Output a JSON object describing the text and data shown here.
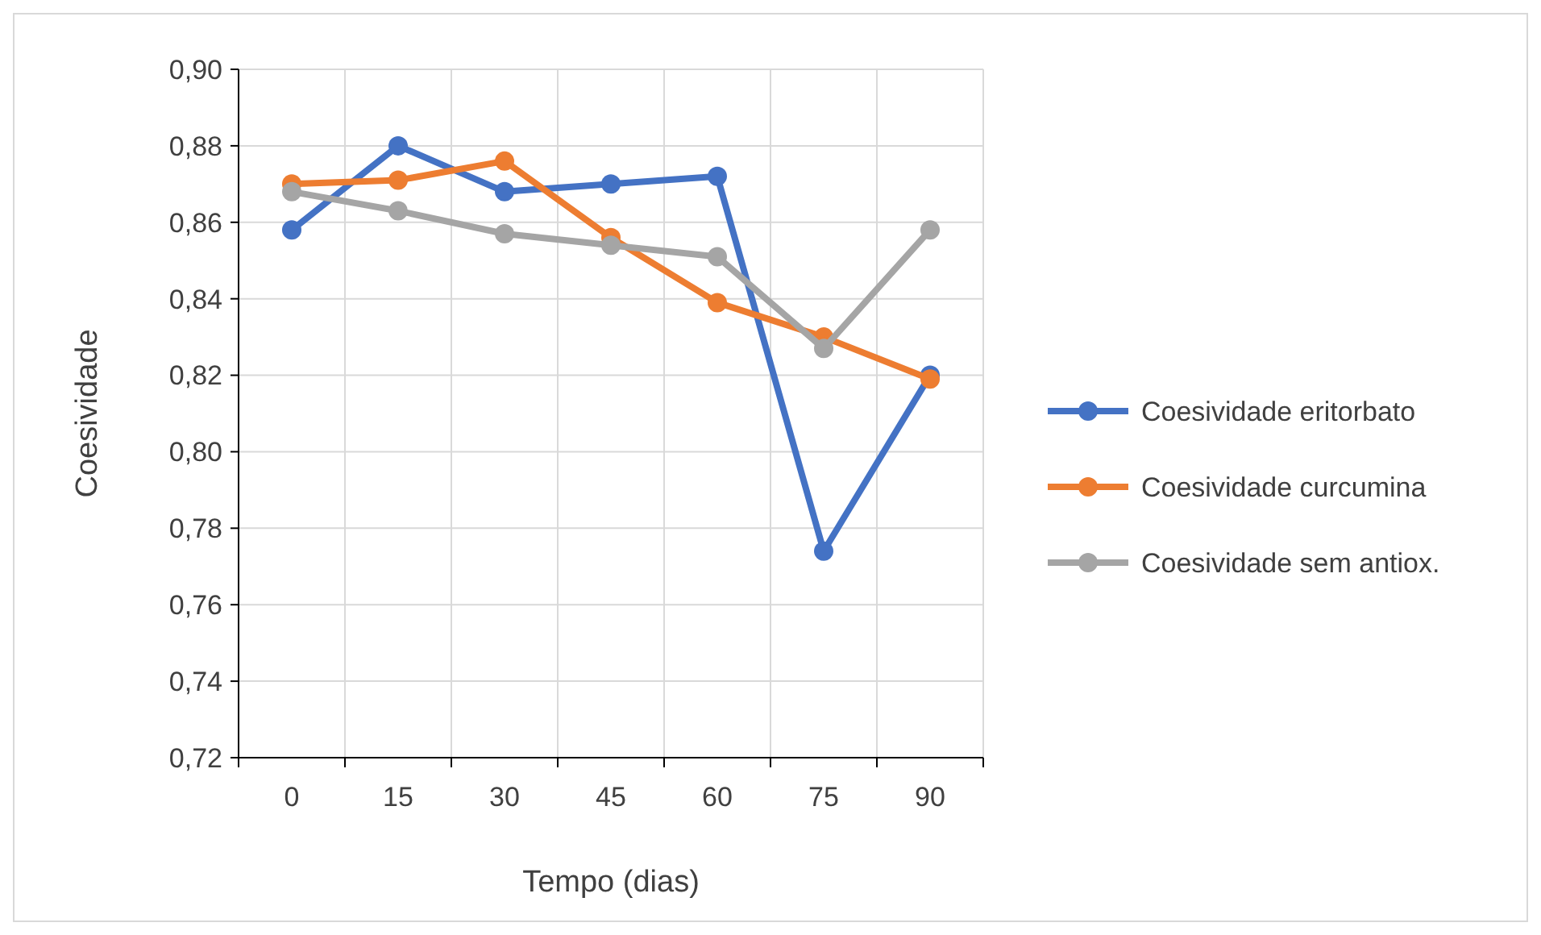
{
  "chart_data": {
    "type": "line",
    "xlabel": "Tempo (dias)",
    "ylabel": "Coesividade",
    "categories": [
      "0",
      "15",
      "30",
      "45",
      "60",
      "75",
      "90"
    ],
    "series": [
      {
        "name": "Coesividade eritorbato",
        "color": "#4472c4",
        "values": [
          0.858,
          0.88,
          0.868,
          0.87,
          0.872,
          0.774,
          0.82
        ]
      },
      {
        "name": "Coesividade curcumina",
        "color": "#ed7d31",
        "values": [
          0.87,
          0.871,
          0.876,
          0.856,
          0.839,
          0.83,
          0.819
        ]
      },
      {
        "name": "Coesividade sem antiox.",
        "color": "#a5a5a5",
        "values": [
          0.868,
          0.863,
          0.857,
          0.854,
          0.851,
          0.827,
          0.858
        ]
      }
    ],
    "ylim": [
      0.72,
      0.9
    ],
    "yticks": [
      {
        "value": 0.72,
        "label": "0,72"
      },
      {
        "value": 0.74,
        "label": "0,74"
      },
      {
        "value": 0.76,
        "label": "0,76"
      },
      {
        "value": 0.78,
        "label": "0,78"
      },
      {
        "value": 0.8,
        "label": "0,80"
      },
      {
        "value": 0.82,
        "label": "0,82"
      },
      {
        "value": 0.84,
        "label": "0,84"
      },
      {
        "value": 0.86,
        "label": "0,86"
      },
      {
        "value": 0.88,
        "label": "0,88"
      },
      {
        "value": 0.9,
        "label": "0,90"
      }
    ],
    "grid": true,
    "legend": "right",
    "marker": "circle",
    "line_style": "solid"
  }
}
